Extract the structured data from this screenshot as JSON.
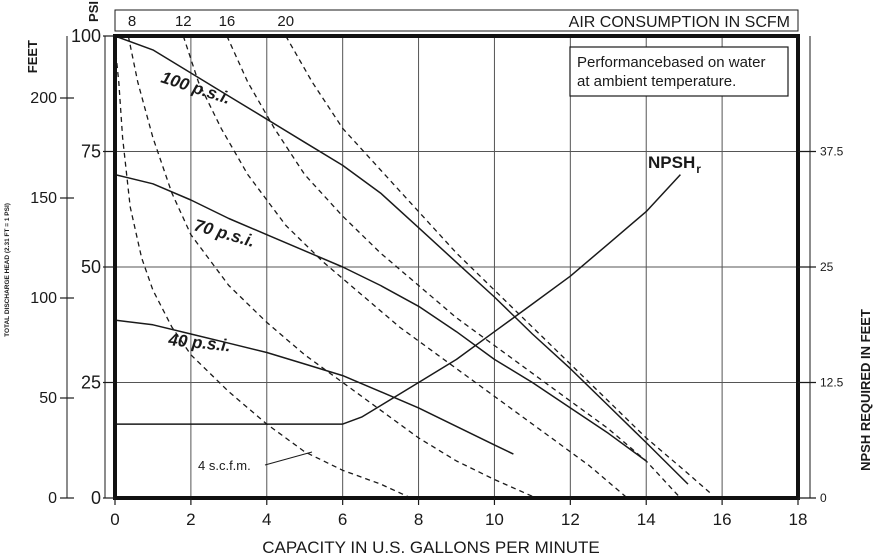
{
  "chart_data": {
    "type": "line",
    "x_axis": {
      "label": "CAPACITY IN U.S. GALLONS PER MINUTE",
      "min": 0,
      "max": 18,
      "ticks": [
        0,
        2,
        4,
        6,
        8,
        10,
        12,
        14,
        16,
        18
      ]
    },
    "y_axis_psi": {
      "label": "PSI",
      "min": 0,
      "max": 100,
      "ticks": [
        0,
        25,
        50,
        75,
        100
      ]
    },
    "y_axis_feet": {
      "label": "FEET",
      "sublabel": "TOTAL DISCHARGE HEAD (2.31 FT = 1 PSI)",
      "min": 0,
      "max": 231,
      "ticks": [
        0,
        50,
        100,
        150,
        200
      ]
    },
    "y_axis_npsh": {
      "label": "NPSH REQUIRED IN FEET",
      "min": 0,
      "max": 50,
      "ticks": [
        0,
        12.5,
        25,
        37.5
      ],
      "tick_labels": [
        "0",
        "12.5",
        "25",
        "37.5"
      ]
    },
    "top_axis": {
      "label": "AIR CONSUMPTION IN SCFM",
      "ticks": [
        {
          "label": "8",
          "x": 0.45
        },
        {
          "label": "12",
          "x": 1.8
        },
        {
          "label": "16",
          "x": 2.95
        },
        {
          "label": "20",
          "x": 4.5
        }
      ]
    },
    "grid": true,
    "note": [
      "Performancebased on water",
      "at ambient temperature."
    ],
    "series": [
      {
        "name": "100 p.s.i.",
        "style": "solid",
        "axis": "psi",
        "points": [
          [
            0,
            100
          ],
          [
            1,
            97
          ],
          [
            2,
            92
          ],
          [
            3,
            87
          ],
          [
            4,
            82
          ],
          [
            5,
            77
          ],
          [
            6,
            72
          ],
          [
            7,
            66
          ],
          [
            8,
            58.5
          ],
          [
            9,
            51
          ],
          [
            10,
            43.5
          ],
          [
            11,
            35.5
          ],
          [
            12,
            28
          ],
          [
            13,
            20
          ],
          [
            14,
            12
          ],
          [
            15.1,
            3
          ]
        ]
      },
      {
        "name": "70 p.s.i.",
        "style": "solid",
        "axis": "psi",
        "points": [
          [
            0,
            70
          ],
          [
            1,
            68
          ],
          [
            2,
            64.5
          ],
          [
            3,
            60.5
          ],
          [
            4,
            57
          ],
          [
            5,
            53.5
          ],
          [
            6,
            50
          ],
          [
            7,
            46
          ],
          [
            8,
            41.5
          ],
          [
            9,
            36
          ],
          [
            10,
            30
          ],
          [
            11,
            25
          ],
          [
            12,
            19.5
          ],
          [
            13,
            14
          ],
          [
            14,
            8
          ]
        ]
      },
      {
        "name": "40 p.s.i.",
        "style": "solid",
        "axis": "psi",
        "points": [
          [
            0,
            38.5
          ],
          [
            1,
            37.5
          ],
          [
            2,
            35.5
          ],
          [
            3,
            33.5
          ],
          [
            4,
            31.5
          ],
          [
            5,
            29
          ],
          [
            6,
            26.5
          ],
          [
            7,
            23
          ],
          [
            8,
            19.5
          ],
          [
            9,
            15.5
          ],
          [
            10,
            11.5
          ],
          [
            10.5,
            9.5
          ]
        ]
      },
      {
        "name": "NPSHr",
        "style": "solid",
        "axis": "psi",
        "points": [
          [
            0,
            16
          ],
          [
            6,
            16
          ],
          [
            6.5,
            17.5
          ],
          [
            7,
            20
          ],
          [
            8,
            25
          ],
          [
            9,
            30
          ],
          [
            10,
            36
          ],
          [
            11,
            42
          ],
          [
            12,
            48
          ],
          [
            13,
            55
          ],
          [
            14,
            62
          ],
          [
            14.9,
            70
          ]
        ]
      },
      {
        "name": "4 s.c.f.m.",
        "style": "dashed",
        "axis": "psi",
        "points": [
          [
            0,
            98
          ],
          [
            0.1,
            90
          ],
          [
            0.2,
            78
          ],
          [
            0.4,
            63
          ],
          [
            0.7,
            52
          ],
          [
            1,
            45
          ],
          [
            1.5,
            37
          ],
          [
            2,
            31
          ],
          [
            3,
            23
          ],
          [
            4,
            16
          ],
          [
            5,
            10
          ],
          [
            6,
            6
          ],
          [
            7,
            3
          ],
          [
            7.8,
            0
          ]
        ]
      },
      {
        "name": "8 s.c.f.m.",
        "style": "dashed",
        "axis": "psi",
        "points": [
          [
            0.35,
            100
          ],
          [
            0.6,
            90
          ],
          [
            1,
            78
          ],
          [
            1.5,
            66
          ],
          [
            2,
            57
          ],
          [
            3,
            46
          ],
          [
            4,
            38
          ],
          [
            5,
            31
          ],
          [
            6,
            25
          ],
          [
            7,
            19
          ],
          [
            8,
            13
          ],
          [
            9,
            8
          ],
          [
            10,
            4
          ],
          [
            11.1,
            0
          ]
        ]
      },
      {
        "name": "12 s.c.f.m.",
        "style": "dashed",
        "axis": "psi",
        "points": [
          [
            1.8,
            100
          ],
          [
            2.2,
            90
          ],
          [
            2.8,
            80
          ],
          [
            3.5,
            70
          ],
          [
            4.5,
            59
          ],
          [
            5.5,
            51
          ],
          [
            6.5,
            44
          ],
          [
            7.5,
            37
          ],
          [
            8.5,
            31
          ],
          [
            9.5,
            25
          ],
          [
            10.5,
            19
          ],
          [
            11.5,
            13
          ],
          [
            12.5,
            7
          ],
          [
            13.5,
            0
          ]
        ]
      },
      {
        "name": "16 s.c.f.m.",
        "style": "dashed",
        "axis": "psi",
        "points": [
          [
            2.95,
            100
          ],
          [
            3.5,
            90
          ],
          [
            4.2,
            80
          ],
          [
            5,
            70
          ],
          [
            6,
            61
          ],
          [
            7,
            53
          ],
          [
            8,
            46
          ],
          [
            9,
            39
          ],
          [
            10,
            33
          ],
          [
            11,
            27
          ],
          [
            12,
            21
          ],
          [
            13,
            15
          ],
          [
            14,
            8
          ],
          [
            14.9,
            0
          ]
        ]
      },
      {
        "name": "20 s.c.f.m.",
        "style": "dashed",
        "axis": "psi",
        "points": [
          [
            4.5,
            100
          ],
          [
            5.2,
            90
          ],
          [
            6,
            80
          ],
          [
            7,
            71
          ],
          [
            8,
            62
          ],
          [
            9,
            53
          ],
          [
            10,
            45
          ],
          [
            11,
            37
          ],
          [
            12,
            29
          ],
          [
            13,
            21
          ],
          [
            14,
            13
          ],
          [
            15,
            6
          ],
          [
            15.7,
            1
          ]
        ]
      }
    ]
  }
}
